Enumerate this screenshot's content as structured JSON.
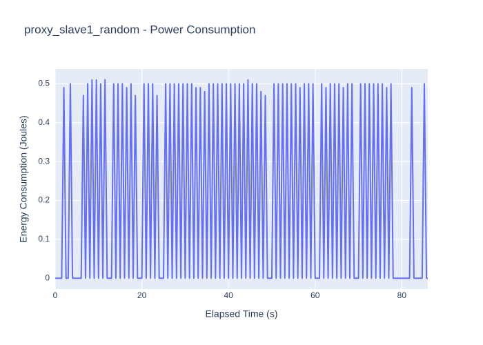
{
  "chart_data": {
    "type": "line",
    "title": "proxy_slave1_random - Power Consumption",
    "x_label": "Elapsed Time (s)",
    "y_label": "Energy Consumption (Joules)",
    "color": "#636efa",
    "grid": true,
    "xlim": [
      0,
      86
    ],
    "ylim": [
      -0.028,
      0.538
    ],
    "xticks": [
      0,
      20,
      40,
      60,
      80
    ],
    "yticks": [
      0,
      0.1,
      0.2,
      0.3,
      0.4,
      0.5
    ],
    "x": [
      0,
      1.5,
      2,
      2.5,
      3,
      3.5,
      4,
      6,
      6.5,
      7,
      7.5,
      8,
      8.5,
      9,
      9.5,
      10,
      10.5,
      11,
      11.5,
      12,
      12.5,
      13,
      13.5,
      14,
      14.5,
      15,
      15.5,
      16,
      16.5,
      17,
      17.5,
      18,
      18.5,
      19,
      19.5,
      20,
      20.5,
      21,
      21.5,
      22,
      22.5,
      23,
      23.5,
      24,
      24.5,
      25,
      25.5,
      26,
      26.5,
      27,
      27.5,
      28,
      28.5,
      29,
      29.5,
      30,
      30.5,
      31,
      31.5,
      32,
      32.5,
      33,
      33.5,
      34,
      34.5,
      35,
      35.5,
      36,
      36.5,
      37,
      37.5,
      38,
      38.5,
      39,
      39.5,
      40,
      40.5,
      41,
      41.5,
      42,
      42.5,
      43,
      43.5,
      44,
      44.5,
      45,
      45.5,
      46,
      46.5,
      47,
      47.5,
      48,
      48.5,
      49,
      49.5,
      50,
      50.5,
      51,
      51.5,
      52,
      52.5,
      53,
      53.5,
      54,
      54.5,
      55,
      55.5,
      56,
      56.5,
      57,
      57.5,
      58,
      58.5,
      59,
      59.5,
      60,
      60.5,
      61,
      61.5,
      62,
      62.5,
      63,
      63.5,
      64,
      64.5,
      65,
      65.5,
      66,
      66.5,
      67,
      67.5,
      68,
      68.5,
      69,
      69.5,
      70,
      70.5,
      71,
      71.5,
      72,
      72.5,
      73,
      73.5,
      74,
      74.5,
      75,
      75.5,
      76,
      76.5,
      77,
      77.5,
      78,
      81.8,
      82.3,
      82.8,
      84.7,
      85.2,
      85.7,
      86
    ],
    "values": [
      0,
      0,
      0.49,
      0,
      0,
      0.5,
      0,
      0,
      0.47,
      0,
      0.5,
      0,
      0.51,
      0,
      0.51,
      0,
      0.5,
      0,
      0.51,
      0,
      0,
      0,
      0.5,
      0,
      0.5,
      0,
      0.5,
      0,
      0.49,
      0,
      0.5,
      0,
      0.47,
      0,
      0,
      0,
      0.5,
      0,
      0.5,
      0,
      0.5,
      0,
      0.47,
      0,
      0,
      0,
      0.5,
      0,
      0.5,
      0,
      0.5,
      0,
      0.5,
      0,
      0.5,
      0,
      0.5,
      0,
      0.5,
      0,
      0.49,
      0,
      0.49,
      0,
      0.48,
      0,
      0.5,
      0,
      0.5,
      0,
      0.5,
      0,
      0.5,
      0,
      0.5,
      0,
      0.5,
      0,
      0.5,
      0,
      0.5,
      0,
      0.5,
      0,
      0.51,
      0,
      0.5,
      0,
      0.5,
      0,
      0.48,
      0,
      0.47,
      0,
      0,
      0,
      0.5,
      0,
      0.5,
      0,
      0.5,
      0,
      0.5,
      0,
      0.5,
      0,
      0.5,
      0,
      0.49,
      0,
      0.5,
      0,
      0.5,
      0,
      0.5,
      0,
      0,
      0,
      0.5,
      0,
      0.49,
      0,
      0.5,
      0,
      0.5,
      0,
      0.5,
      0,
      0.49,
      0,
      0.5,
      0,
      0.5,
      0,
      0,
      0,
      0.5,
      0,
      0.5,
      0,
      0.5,
      0,
      0.5,
      0,
      0.5,
      0,
      0.5,
      0,
      0.49,
      0,
      0.5,
      0,
      0,
      0.49,
      0,
      0,
      0.5,
      0,
      0
    ]
  }
}
